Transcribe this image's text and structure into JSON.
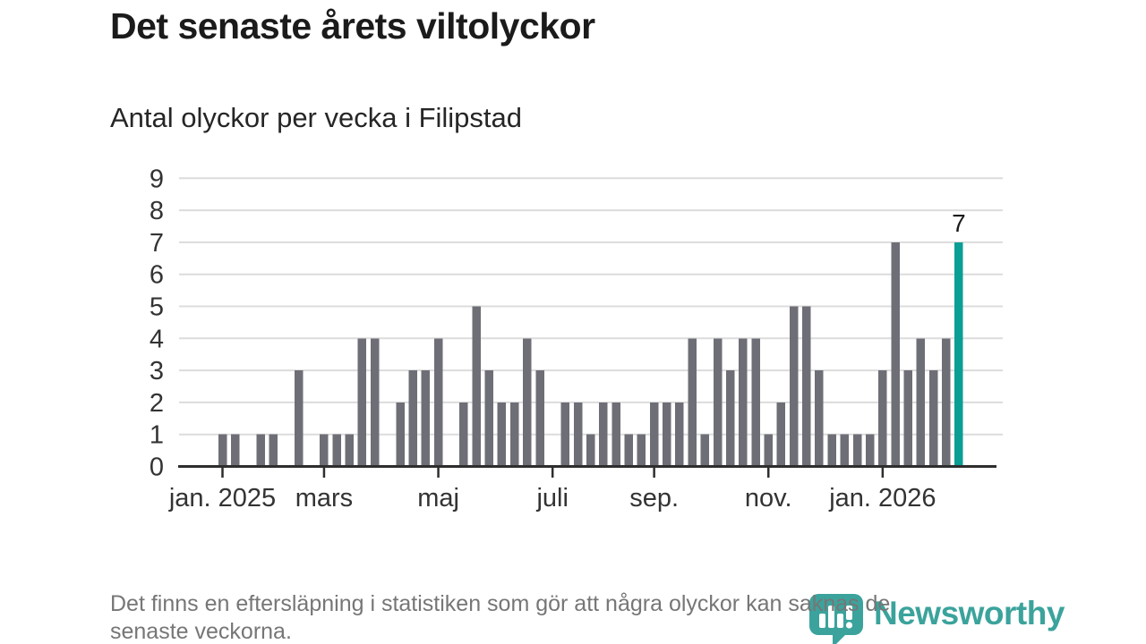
{
  "header": {
    "title": "Det senaste årets viltolyckor",
    "subtitle": "Antal olyckor per vecka i Filipstad"
  },
  "chart_data": {
    "type": "bar",
    "title": "Det senaste årets viltolyckor",
    "subtitle_as_ylabel": "Antal olyckor per vecka i Filipstad",
    "x_unit": "vecka",
    "values": [
      1,
      1,
      0,
      1,
      1,
      0,
      3,
      0,
      1,
      1,
      1,
      4,
      4,
      0,
      2,
      3,
      3,
      4,
      0,
      2,
      5,
      3,
      2,
      2,
      4,
      3,
      0,
      2,
      2,
      1,
      2,
      2,
      1,
      1,
      2,
      2,
      2,
      4,
      1,
      4,
      3,
      4,
      4,
      1,
      2,
      5,
      5,
      3,
      1,
      1,
      1,
      1,
      3,
      7,
      3,
      4,
      3,
      4,
      7
    ],
    "ylim": [
      0,
      9
    ],
    "yticks": [
      "0",
      "1",
      "2",
      "3",
      "4",
      "5",
      "6",
      "7",
      "8",
      "9"
    ],
    "xticks": [
      {
        "label": "jan. 2025",
        "index": 0
      },
      {
        "label": "mars",
        "index": 8
      },
      {
        "label": "maj",
        "index": 17
      },
      {
        "label": "juli",
        "index": 26
      },
      {
        "label": "sep.",
        "index": 34
      },
      {
        "label": "nov.",
        "index": 43
      },
      {
        "label": "jan. 2026",
        "index": 52
      }
    ],
    "highlight": {
      "index": 58,
      "value": 7,
      "label": "7"
    },
    "grid": true,
    "legend": false,
    "colors": {
      "bar": "#6e6e76",
      "highlight": "#0a9e95",
      "grid": "#dcdcdc",
      "axis": "#2e2e2e",
      "tick_text": "#333333",
      "value_label": "#1a1a1a"
    }
  },
  "footer": {
    "note": "Det finns en eftersläpning i statistiken som gör att några olyckor kan saknas de\nsenaste veckorna.",
    "brand": "Newsworthy",
    "brand_color": "#3ba39c"
  }
}
